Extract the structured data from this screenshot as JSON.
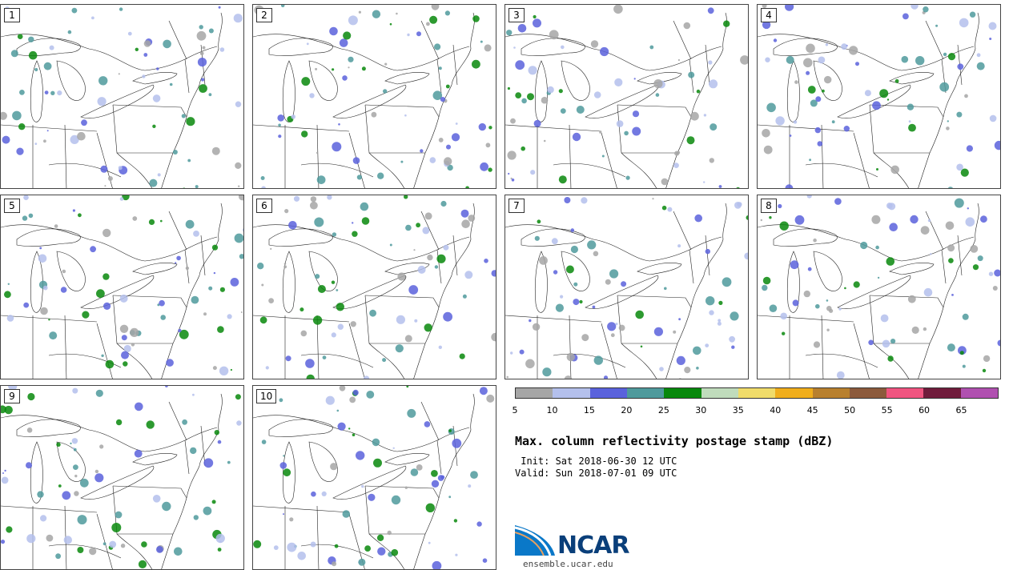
{
  "panels": [
    {
      "label": "1"
    },
    {
      "label": "2"
    },
    {
      "label": "3"
    },
    {
      "label": "4"
    },
    {
      "label": "5"
    },
    {
      "label": "6"
    },
    {
      "label": "7"
    },
    {
      "label": "8"
    },
    {
      "label": "9"
    },
    {
      "label": "10"
    }
  ],
  "colorbar": {
    "colors": [
      "#a6a6a6",
      "#b4c0ec",
      "#5a62dc",
      "#4f9a9c",
      "#08880c",
      "#c0dcbc",
      "#f0dc6a",
      "#f0ae1c",
      "#b8802e",
      "#8c5a3c",
      "#f05480",
      "#701c3c",
      "#b050b0"
    ],
    "ticks": [
      "5",
      "10",
      "15",
      "20",
      "25",
      "30",
      "35",
      "40",
      "45",
      "50",
      "55",
      "60",
      "65"
    ]
  },
  "title": "Max. column reflectivity postage stamp (dBZ)",
  "init": " Init: Sat 2018-06-30 12 UTC",
  "valid": "Valid: Sun 2018-07-01 09 UTC",
  "logo": {
    "text": "NCAR",
    "url": "ensemble.ucar.edu"
  }
}
